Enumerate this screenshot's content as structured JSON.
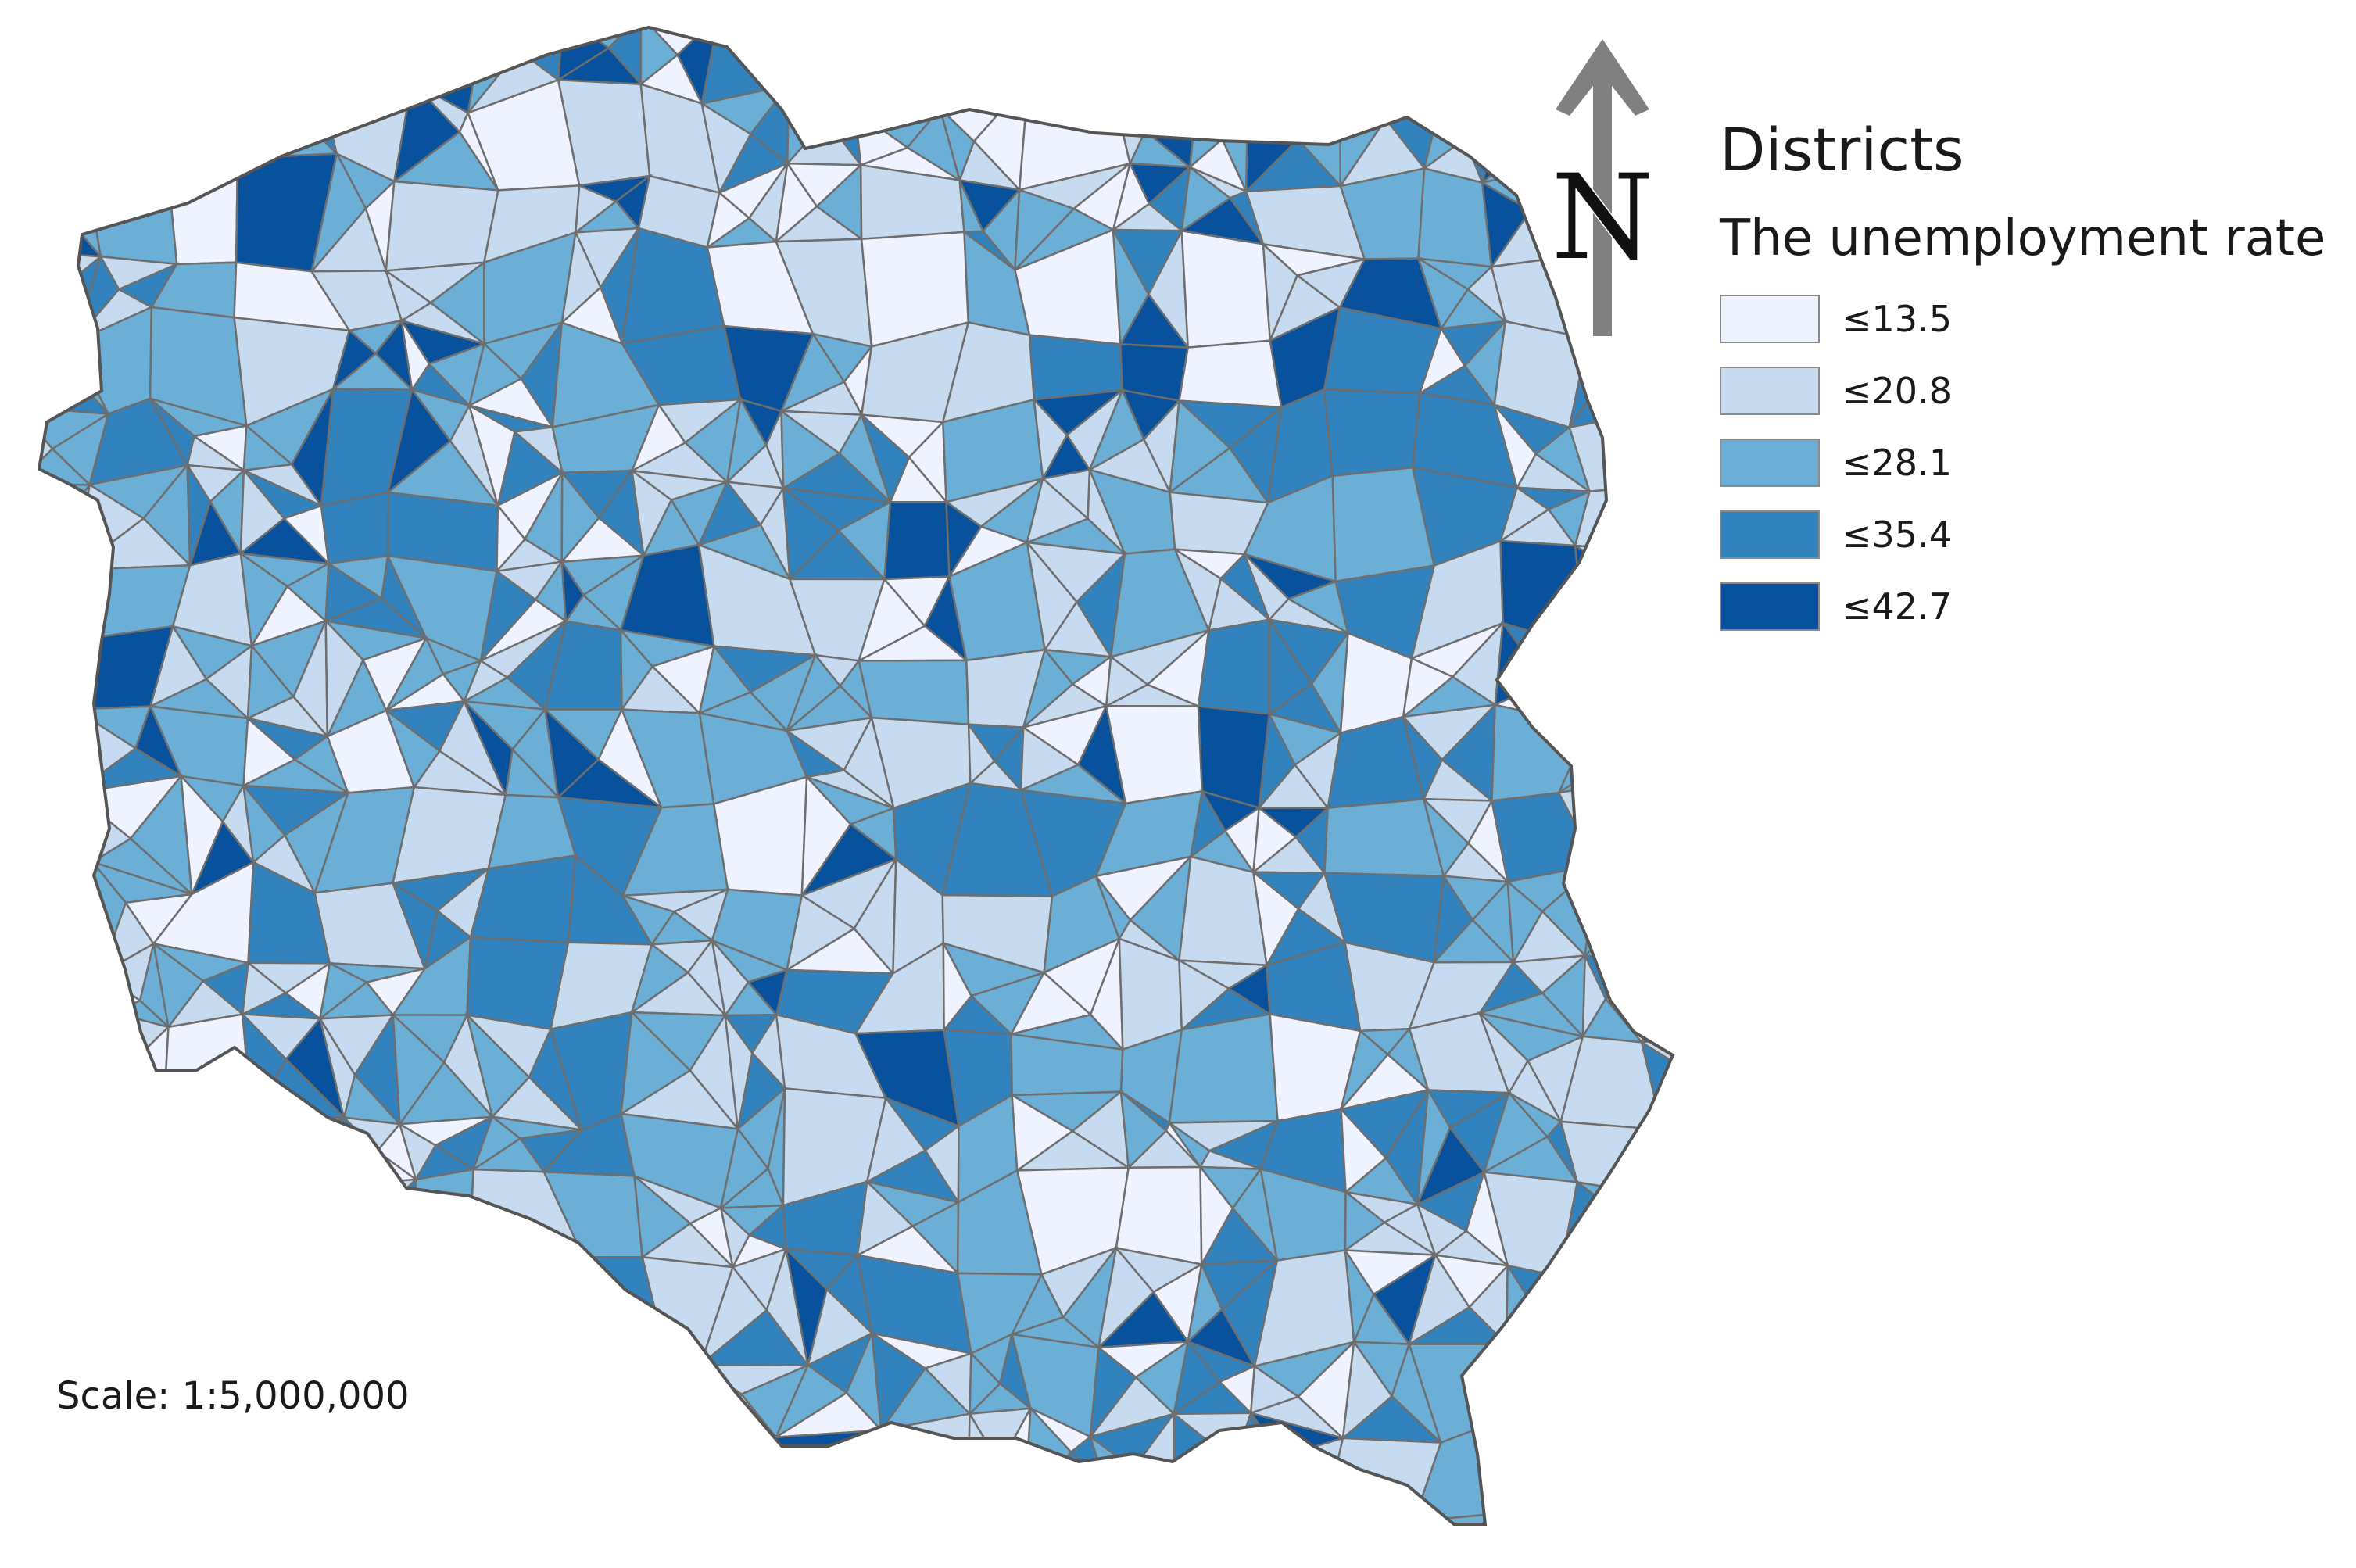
{
  "legend": {
    "title": "Districts",
    "subtitle": "The unemployment rate",
    "items": [
      {
        "label": "≤13.5",
        "color": "#eff3ff"
      },
      {
        "label": "≤20.8",
        "color": "#c6dbef"
      },
      {
        "label": "≤28.1",
        "color": "#6baed6"
      },
      {
        "label": "≤35.4",
        "color": "#3182bd"
      },
      {
        "label": "≤42.7",
        "color": "#08519c"
      }
    ]
  },
  "north_arrow": {
    "label": "N",
    "color": "#808080"
  },
  "scale": {
    "text": "Scale: 1:5,000,000"
  },
  "map": {
    "region": "Poland",
    "boundary_color": "#6e6e6e"
  }
}
